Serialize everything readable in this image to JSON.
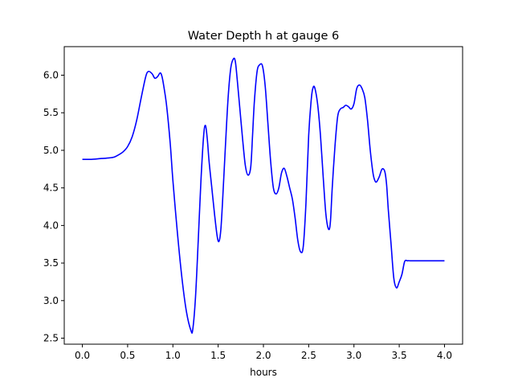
{
  "chart_data": {
    "type": "line",
    "title": "Water Depth h at gauge 6",
    "xlabel": "hours",
    "ylabel": "",
    "xlim": [
      -0.2,
      4.2
    ],
    "ylim": [
      2.42,
      6.38
    ],
    "xticks": [
      0.0,
      0.5,
      1.0,
      1.5,
      2.0,
      2.5,
      3.0,
      3.5,
      4.0
    ],
    "xtick_labels": [
      "0.0",
      "0.5",
      "1.0",
      "1.5",
      "2.0",
      "2.5",
      "3.0",
      "3.5",
      "4.0"
    ],
    "yticks": [
      2.5,
      3.0,
      3.5,
      4.0,
      4.5,
      5.0,
      5.5,
      6.0
    ],
    "ytick_labels": [
      "2.5",
      "3.0",
      "3.5",
      "4.0",
      "4.5",
      "5.0",
      "5.5",
      "6.0"
    ],
    "grid": false,
    "legend": "none",
    "series": [
      {
        "color": "#0000ff",
        "x": [
          0.0,
          0.1,
          0.2,
          0.3,
          0.35,
          0.4,
          0.45,
          0.5,
          0.55,
          0.6,
          0.65,
          0.7,
          0.73,
          0.77,
          0.8,
          0.83,
          0.86,
          0.88,
          0.9,
          0.93,
          0.97,
          1.0,
          1.05,
          1.1,
          1.15,
          1.2,
          1.22,
          1.25,
          1.28,
          1.31,
          1.34,
          1.36,
          1.38,
          1.4,
          1.43,
          1.46,
          1.49,
          1.51,
          1.53,
          1.55,
          1.58,
          1.61,
          1.64,
          1.67,
          1.69,
          1.71,
          1.74,
          1.77,
          1.8,
          1.83,
          1.86,
          1.88,
          1.9,
          1.93,
          1.96,
          1.99,
          2.02,
          2.05,
          2.08,
          2.11,
          2.14,
          2.17,
          2.2,
          2.23,
          2.26,
          2.29,
          2.32,
          2.35,
          2.38,
          2.41,
          2.44,
          2.47,
          2.5,
          2.53,
          2.55,
          2.57,
          2.6,
          2.63,
          2.66,
          2.69,
          2.72,
          2.74,
          2.76,
          2.79,
          2.82,
          2.85,
          2.88,
          2.91,
          2.94,
          2.97,
          3.0,
          3.03,
          3.06,
          3.09,
          3.12,
          3.15,
          3.18,
          3.21,
          3.23,
          3.25,
          3.28,
          3.31,
          3.34,
          3.36,
          3.38,
          3.41,
          3.44,
          3.47,
          3.5,
          3.53,
          3.56,
          3.59,
          3.62,
          3.65,
          3.68,
          3.71,
          3.74,
          3.77,
          3.8,
          3.83,
          3.86,
          3.89,
          3.92,
          3.94,
          3.96,
          3.98,
          4.0
        ],
        "y": [
          4.88,
          4.88,
          4.89,
          4.9,
          4.91,
          4.94,
          4.98,
          5.05,
          5.18,
          5.4,
          5.7,
          5.98,
          6.05,
          6.02,
          5.96,
          5.98,
          6.03,
          5.98,
          5.85,
          5.6,
          5.1,
          4.6,
          3.9,
          3.3,
          2.85,
          2.6,
          2.62,
          3.05,
          3.8,
          4.6,
          5.2,
          5.33,
          5.15,
          4.85,
          4.5,
          4.15,
          3.85,
          3.79,
          3.95,
          4.35,
          5.05,
          5.7,
          6.1,
          6.22,
          6.18,
          5.95,
          5.55,
          5.15,
          4.8,
          4.67,
          4.78,
          5.2,
          5.65,
          6.05,
          6.14,
          6.12,
          5.85,
          5.35,
          4.85,
          4.5,
          4.42,
          4.5,
          4.7,
          4.76,
          4.65,
          4.5,
          4.35,
          4.1,
          3.8,
          3.65,
          3.72,
          4.3,
          5.2,
          5.7,
          5.84,
          5.82,
          5.6,
          5.2,
          4.65,
          4.15,
          3.95,
          4.05,
          4.5,
          5.05,
          5.45,
          5.55,
          5.57,
          5.6,
          5.58,
          5.55,
          5.62,
          5.82,
          5.87,
          5.82,
          5.7,
          5.4,
          5.0,
          4.7,
          4.6,
          4.58,
          4.65,
          4.75,
          4.72,
          4.55,
          4.2,
          3.75,
          3.3,
          3.17,
          3.25,
          3.35,
          3.52,
          3.53,
          3.53,
          3.53,
          3.53,
          3.53,
          3.53,
          3.53,
          3.53,
          3.53,
          3.53,
          3.53,
          3.53,
          3.53,
          3.53,
          3.53,
          3.53
        ]
      }
    ]
  }
}
